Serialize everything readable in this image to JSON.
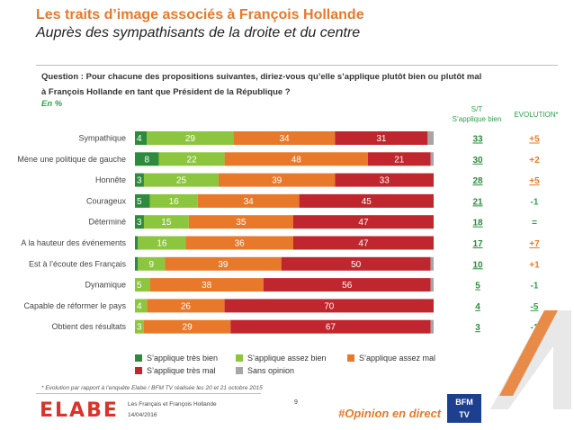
{
  "header": {
    "title": "Les traits d’image associés à François Hollande",
    "subtitle": "Auprès des sympathisants de la droite et du centre"
  },
  "question": {
    "line1": "Question : Pour chacune des propositions suivantes, diriez-vous qu’elle s’applique plutôt bien ou plutôt mal",
    "line2": "à François Hollande en tant que Président de la République ?",
    "unit": "En %"
  },
  "columns": {
    "st_line1": "S/T",
    "st_line2": "S’applique bien",
    "evolution": "EVOLUTION*"
  },
  "colors": {
    "tres_bien": "#2e8b3e",
    "assez_bien": "#8cc63f",
    "assez_mal": "#e8792b",
    "tres_mal": "#c0262d",
    "sans_opinion": "#a6a6a6",
    "evo_up": "#e8792b",
    "evo_down": "#2ea04a"
  },
  "chart_data": {
    "type": "bar",
    "stacked": true,
    "orientation": "horizontal",
    "categories": [
      "Sympathique",
      "Mène une politique de gauche",
      "Honnête",
      "Courageux",
      "Déterminé",
      "A la hauteur des événements",
      "Est à l’écoute des Français",
      "Dynamique",
      "Capable de réformer le pays",
      "Obtient des résultats"
    ],
    "series": [
      {
        "name": "S’applique très bien",
        "values": [
          4,
          8,
          3,
          5,
          3,
          1,
          1,
          0,
          0,
          0
        ]
      },
      {
        "name": "S’applique assez bien",
        "values": [
          29,
          22,
          25,
          16,
          15,
          16,
          9,
          5,
          4,
          3
        ]
      },
      {
        "name": "S’applique assez mal",
        "values": [
          34,
          48,
          39,
          34,
          35,
          36,
          39,
          38,
          26,
          29
        ]
      },
      {
        "name": "S’applique très mal",
        "values": [
          31,
          21,
          33,
          45,
          47,
          47,
          50,
          56,
          70,
          67
        ]
      },
      {
        "name": "Sans opinion",
        "values": [
          2,
          1,
          0,
          0,
          0,
          0,
          1,
          1,
          0,
          1
        ]
      }
    ],
    "st_applique_bien": [
      "33",
      "30",
      "28",
      "21",
      "18",
      "17",
      "10",
      "5",
      "4",
      "3"
    ],
    "evolution": [
      "+5",
      "+2",
      "+5",
      "-1",
      "=",
      "+7",
      "+1",
      "-1",
      "-5",
      "-1"
    ],
    "xlim": [
      0,
      100
    ],
    "legend_position": "bottom"
  },
  "legend": {
    "items": [
      "S’applique très bien",
      "S’applique assez bien",
      "S’applique assez mal",
      "S’applique très mal",
      "Sans opinion"
    ]
  },
  "footer": {
    "footnote": "* Evolution par rapport à l’enquête Elabe / BFM TV réalisée les 20 et 21 octobre 2015",
    "logo": "ELABE",
    "study": "Les Français et François Hollande",
    "date": "14/04/2016",
    "page": "9",
    "hashtag": "#Opinion en direct",
    "bfm_line1": "BFM",
    "bfm_line2": "TV"
  }
}
